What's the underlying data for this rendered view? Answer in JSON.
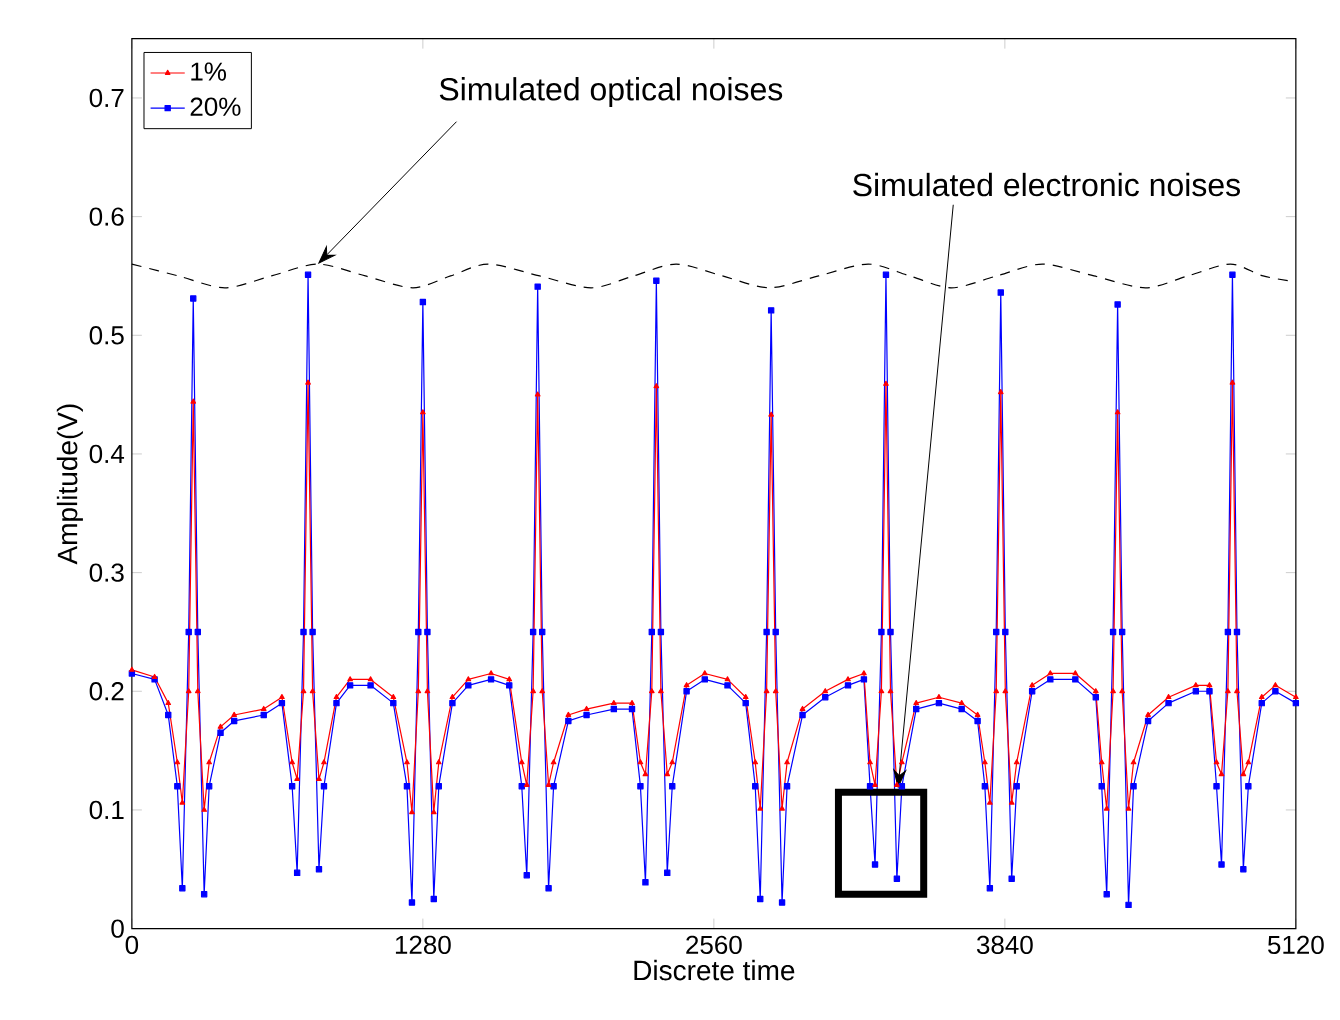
{
  "chart_data": {
    "type": "line",
    "xlabel": "Discrete time",
    "ylabel": "Amplitude(V)",
    "xlim": [
      0,
      5120
    ],
    "xticks": [
      0,
      1280,
      2560,
      3840,
      5120
    ],
    "ylim": [
      0,
      0.75
    ],
    "yticks": [
      0,
      0.1,
      0.2,
      0.3,
      0.4,
      0.5,
      0.6,
      0.7
    ],
    "legend": "top left",
    "grid": false,
    "annotations": [
      {
        "text": "Simulated optical noises",
        "x": 818,
        "y": 0.56
      },
      {
        "text": "Simulated electronic noises",
        "x": 3370,
        "y": 0.118
      }
    ],
    "series": [
      {
        "name": "1%",
        "color": "#ff0000",
        "marker": "triangle",
        "x": [
          0,
          100,
          160,
          200,
          222,
          250,
          270,
          290,
          318,
          340,
          390,
          450,
          580,
          660,
          705,
          727,
          755,
          775,
          795,
          823,
          845,
          900,
          960,
          1050,
          1150,
          1210,
          1232,
          1260,
          1280,
          1300,
          1328,
          1350,
          1410,
          1480,
          1580,
          1660,
          1715,
          1737,
          1765,
          1785,
          1805,
          1833,
          1855,
          1920,
          2000,
          2120,
          2200,
          2237,
          2259,
          2287,
          2307,
          2327,
          2355,
          2377,
          2440,
          2520,
          2620,
          2700,
          2742,
          2764,
          2792,
          2812,
          2832,
          2860,
          2882,
          2950,
          3050,
          3150,
          3220,
          3247,
          3269,
          3297,
          3317,
          3337,
          3365,
          3387,
          3450,
          3550,
          3650,
          3720,
          3752,
          3774,
          3802,
          3822,
          3842,
          3870,
          3892,
          3960,
          4040,
          4150,
          4240,
          4266,
          4288,
          4316,
          4336,
          4356,
          4384,
          4406,
          4470,
          4560,
          4680,
          4740,
          4771,
          4793,
          4821,
          4841,
          4861,
          4889,
          4911,
          4970,
          5030,
          5120
        ],
        "values": [
          0.218,
          0.212,
          0.19,
          0.14,
          0.106,
          0.2,
          0.444,
          0.2,
          0.1,
          0.14,
          0.17,
          0.18,
          0.185,
          0.195,
          0.14,
          0.126,
          0.2,
          0.46,
          0.2,
          0.126,
          0.14,
          0.195,
          0.21,
          0.21,
          0.195,
          0.14,
          0.098,
          0.2,
          0.435,
          0.2,
          0.098,
          0.14,
          0.195,
          0.21,
          0.215,
          0.21,
          0.14,
          0.121,
          0.2,
          0.45,
          0.2,
          0.121,
          0.14,
          0.18,
          0.185,
          0.19,
          0.19,
          0.14,
          0.13,
          0.2,
          0.457,
          0.2,
          0.13,
          0.14,
          0.205,
          0.215,
          0.21,
          0.195,
          0.14,
          0.101,
          0.2,
          0.433,
          0.2,
          0.101,
          0.14,
          0.185,
          0.2,
          0.21,
          0.215,
          0.14,
          0.121,
          0.2,
          0.459,
          0.2,
          0.121,
          0.14,
          0.19,
          0.195,
          0.19,
          0.18,
          0.14,
          0.106,
          0.2,
          0.452,
          0.2,
          0.106,
          0.14,
          0.205,
          0.215,
          0.215,
          0.2,
          0.14,
          0.101,
          0.2,
          0.435,
          0.2,
          0.101,
          0.14,
          0.18,
          0.195,
          0.205,
          0.205,
          0.14,
          0.13,
          0.2,
          0.46,
          0.2,
          0.13,
          0.14,
          0.195,
          0.205,
          0.195
        ]
      },
      {
        "name": "20%",
        "color": "#0000ff",
        "marker": "square",
        "x": [
          0,
          100,
          160,
          200,
          222,
          250,
          270,
          290,
          318,
          340,
          390,
          450,
          580,
          660,
          705,
          727,
          755,
          775,
          795,
          823,
          845,
          900,
          960,
          1050,
          1150,
          1210,
          1232,
          1260,
          1280,
          1300,
          1328,
          1350,
          1410,
          1480,
          1580,
          1660,
          1715,
          1737,
          1765,
          1785,
          1805,
          1833,
          1855,
          1920,
          2000,
          2120,
          2200,
          2237,
          2259,
          2287,
          2307,
          2327,
          2355,
          2377,
          2440,
          2520,
          2620,
          2700,
          2742,
          2764,
          2792,
          2812,
          2832,
          2860,
          2882,
          2950,
          3050,
          3150,
          3220,
          3247,
          3269,
          3297,
          3317,
          3337,
          3365,
          3387,
          3450,
          3550,
          3650,
          3720,
          3752,
          3774,
          3802,
          3822,
          3842,
          3870,
          3892,
          3960,
          4040,
          4150,
          4240,
          4266,
          4288,
          4316,
          4336,
          4356,
          4384,
          4406,
          4470,
          4560,
          4680,
          4740,
          4771,
          4793,
          4821,
          4841,
          4861,
          4889,
          4911,
          4970,
          5030,
          5120
        ],
        "values": [
          0.215,
          0.21,
          0.18,
          0.12,
          0.034,
          0.25,
          0.531,
          0.25,
          0.029,
          0.12,
          0.165,
          0.175,
          0.18,
          0.19,
          0.12,
          0.047,
          0.25,
          0.551,
          0.25,
          0.05,
          0.12,
          0.19,
          0.205,
          0.205,
          0.19,
          0.12,
          0.022,
          0.25,
          0.528,
          0.25,
          0.025,
          0.12,
          0.19,
          0.205,
          0.21,
          0.205,
          0.12,
          0.045,
          0.25,
          0.541,
          0.25,
          0.034,
          0.12,
          0.175,
          0.18,
          0.185,
          0.185,
          0.12,
          0.039,
          0.25,
          0.546,
          0.25,
          0.047,
          0.12,
          0.2,
          0.21,
          0.205,
          0.19,
          0.12,
          0.025,
          0.25,
          0.521,
          0.25,
          0.022,
          0.12,
          0.18,
          0.195,
          0.205,
          0.21,
          0.12,
          0.054,
          0.25,
          0.551,
          0.25,
          0.042,
          0.12,
          0.185,
          0.19,
          0.185,
          0.175,
          0.12,
          0.034,
          0.25,
          0.536,
          0.25,
          0.042,
          0.12,
          0.2,
          0.21,
          0.21,
          0.195,
          0.12,
          0.029,
          0.25,
          0.526,
          0.25,
          0.02,
          0.12,
          0.175,
          0.19,
          0.2,
          0.2,
          0.12,
          0.054,
          0.25,
          0.551,
          0.25,
          0.05,
          0.12,
          0.19,
          0.2,
          0.19
        ]
      },
      {
        "color": "#000000",
        "line_style": "dashed",
        "marker": "none",
        "x": [
          0,
          204,
          409,
          614,
          818,
          1027,
          1236,
          1402,
          1567,
          1794,
          2020,
          2207,
          2394,
          2598,
          2803,
          3021,
          3239,
          3422,
          3605,
          3805,
          4005,
          4232,
          4458,
          4645,
          4832,
          4976,
          5120
        ],
        "values": [
          0.56,
          0.55,
          0.54,
          0.55,
          0.56,
          0.55,
          0.54,
          0.55,
          0.56,
          0.55,
          0.54,
          0.55,
          0.56,
          0.55,
          0.54,
          0.55,
          0.56,
          0.55,
          0.54,
          0.55,
          0.56,
          0.55,
          0.54,
          0.55,
          0.56,
          0.55,
          0.545
        ]
      }
    ]
  }
}
